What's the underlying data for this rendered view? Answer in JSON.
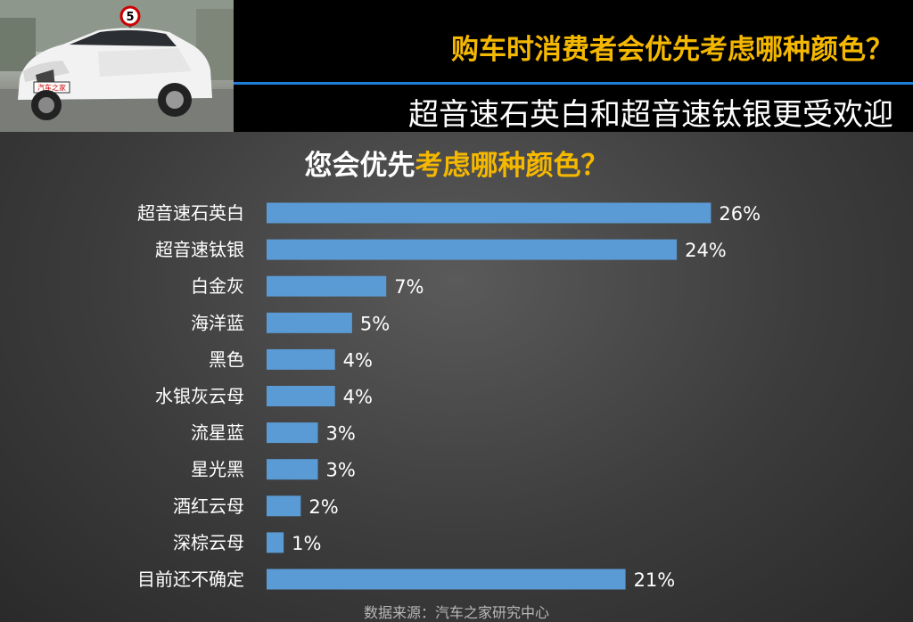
{
  "header": {
    "headline": "购车时消费者会优先考虑哪种颜色？",
    "subheadline": "超音速石英白和超音速钛银更受欢迎"
  },
  "car_photo": {
    "sign_number": "5",
    "plate_text": "汽车之家"
  },
  "chart_data": {
    "type": "bar",
    "orientation": "horizontal",
    "title_part1": "您会优先",
    "title_part2": "考虑哪种颜色？",
    "categories": [
      "超音速石英白",
      "超音速钛银",
      "白金灰",
      "海洋蓝",
      "黑色",
      "水银灰云母",
      "流星蓝",
      "星光黑",
      "酒红云母",
      "深棕云母",
      "目前还不确定"
    ],
    "values": [
      26,
      24,
      7,
      5,
      4,
      4,
      3,
      3,
      2,
      1,
      21
    ],
    "value_labels": [
      "26%",
      "24%",
      "7%",
      "5%",
      "4%",
      "4%",
      "3%",
      "3%",
      "2%",
      "1%",
      "21%"
    ],
    "unit": "%",
    "xlim": [
      0,
      30
    ],
    "grid": false,
    "legend": "none",
    "bar_color": "#5b9bd5",
    "label_color": "#ffffff"
  },
  "footer": {
    "source": "数据来源：汽车之家研究中心"
  },
  "colors": {
    "accent": "#f5b800",
    "rule": "#1e7fd8",
    "background": "#3c3c3c"
  }
}
